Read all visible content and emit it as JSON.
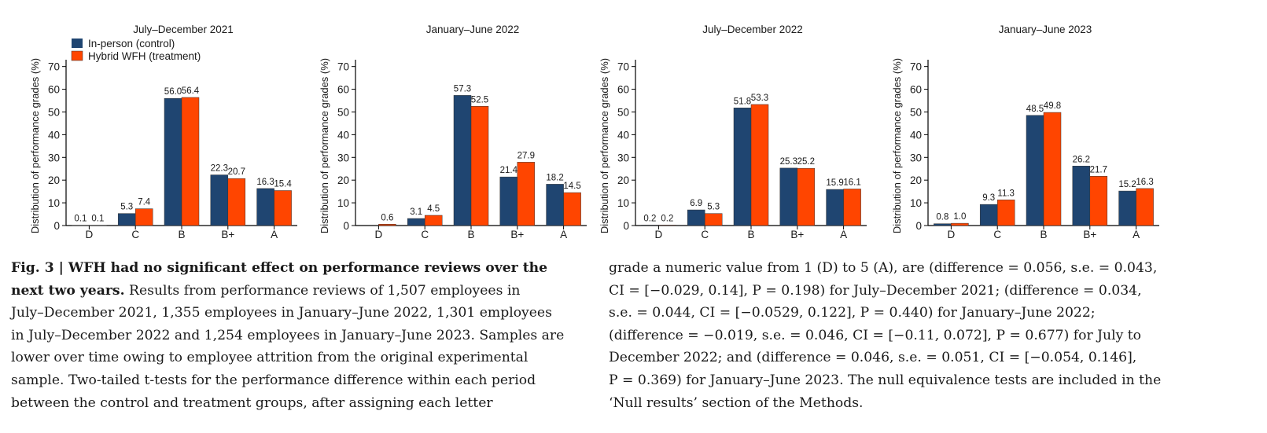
{
  "colors": {
    "control": "#1f4571",
    "treatment": "#ff4500",
    "axis": "#000000"
  },
  "legend": {
    "control": "In-person (control)",
    "treatment": "Hybrid WFH (treatment)"
  },
  "chart_data": [
    {
      "type": "bar",
      "title": "July–December 2021",
      "ylabel": "Distribution of performance grades (%)",
      "categories": [
        "D",
        "C",
        "B",
        "B+",
        "A"
      ],
      "yticks": [
        0,
        10,
        20,
        30,
        40,
        50,
        60,
        70
      ],
      "ylim": [
        0,
        73
      ],
      "series": [
        {
          "name": "In-person (control)",
          "values": [
            0.1,
            5.3,
            56.0,
            22.3,
            16.3
          ],
          "labels": [
            "0.1",
            "5.3",
            "56.0",
            "22.3",
            "16.3"
          ]
        },
        {
          "name": "Hybrid WFH (treatment)",
          "values": [
            0.1,
            7.4,
            56.4,
            20.7,
            15.4
          ],
          "labels": [
            "0.1",
            "7.4",
            "56.4",
            "20.7",
            "15.4"
          ]
        }
      ],
      "legend": "top-left"
    },
    {
      "type": "bar",
      "title": "January–June 2022",
      "ylabel": "Distribution of performance grades (%)",
      "categories": [
        "D",
        "C",
        "B",
        "B+",
        "A"
      ],
      "yticks": [
        0,
        10,
        20,
        30,
        40,
        50,
        60,
        70
      ],
      "ylim": [
        0,
        73
      ],
      "series": [
        {
          "name": "In-person (control)",
          "values": [
            0.0,
            3.1,
            57.3,
            21.4,
            18.2
          ],
          "labels": [
            "",
            "3.1",
            "57.3",
            "21.4",
            "18.2"
          ]
        },
        {
          "name": "Hybrid WFH (treatment)",
          "values": [
            0.6,
            4.5,
            52.5,
            27.9,
            14.5
          ],
          "labels": [
            "0.6",
            "4.5",
            "52.5",
            "27.9",
            "14.5"
          ]
        }
      ]
    },
    {
      "type": "bar",
      "title": "July–December 2022",
      "ylabel": "Distribution of performance grades (%)",
      "categories": [
        "D",
        "C",
        "B",
        "B+",
        "A"
      ],
      "yticks": [
        0,
        10,
        20,
        30,
        40,
        50,
        60,
        70
      ],
      "ylim": [
        0,
        73
      ],
      "series": [
        {
          "name": "In-person (control)",
          "values": [
            0.2,
            6.9,
            51.8,
            25.3,
            15.9
          ],
          "labels": [
            "0.2",
            "6.9",
            "51.8",
            "25.3",
            "15.9"
          ]
        },
        {
          "name": "Hybrid WFH (treatment)",
          "values": [
            0.2,
            5.3,
            53.3,
            25.2,
            16.1
          ],
          "labels": [
            "0.2",
            "5.3",
            "53.3",
            "25.2",
            "16.1"
          ]
        }
      ]
    },
    {
      "type": "bar",
      "title": "January–June 2023",
      "ylabel": "Distribution of performance grades (%)",
      "categories": [
        "D",
        "C",
        "B",
        "B+",
        "A"
      ],
      "yticks": [
        0,
        10,
        20,
        30,
        40,
        50,
        60,
        70
      ],
      "ylim": [
        0,
        73
      ],
      "series": [
        {
          "name": "In-person (control)",
          "values": [
            0.8,
            9.3,
            48.5,
            26.2,
            15.2
          ],
          "labels": [
            "0.8",
            "9.3",
            "48.5",
            "26.2",
            "15.2"
          ]
        },
        {
          "name": "Hybrid WFH (treatment)",
          "values": [
            1.0,
            11.3,
            49.8,
            21.7,
            16.3
          ],
          "labels": [
            "1.0",
            "11.3",
            "49.8",
            "21.7",
            "16.3"
          ]
        }
      ]
    }
  ],
  "caption": {
    "left_lines": [
      {
        "bold": "Fig. 3 | WFH had no significant effect on performance reviews over the",
        "text": ""
      },
      {
        "bold": "next two years.",
        "text": " Results from performance reviews of 1,507 employees in"
      },
      {
        "bold": "",
        "text": "July–December 2021, 1,355 employees in January–June 2022, 1,301 employees"
      },
      {
        "bold": "",
        "text": "in July–December 2022 and 1,254 employees in January–June 2023. Samples are"
      },
      {
        "bold": "",
        "text": "lower over time owing to employee attrition from the original experimental"
      },
      {
        "bold": "",
        "text": "sample. Two-tailed t-tests for the performance difference within each period"
      },
      {
        "bold": "",
        "text": "between the control and treatment groups, after assigning each letter"
      }
    ],
    "right_lines": [
      "grade a numeric value from 1 (D) to 5 (A), are (difference = 0.056, s.e. = 0.043,",
      "CI = [−0.029, 0.14], P = 0.198) for July–December 2021; (difference = 0.034,",
      "s.e. = 0.044, CI = [−0.0529, 0.122], P = 0.440) for January–June 2022;",
      "(difference = −0.019, s.e. = 0.046, CI = [−0.11, 0.072], P = 0.677) for July to",
      "December 2022; and (difference = 0.046, s.e. = 0.051, CI = [−0.054, 0.146],",
      "P = 0.369) for January–June 2023. The null equivalence tests are included in the",
      "‘Null results’ section of the Methods."
    ]
  }
}
